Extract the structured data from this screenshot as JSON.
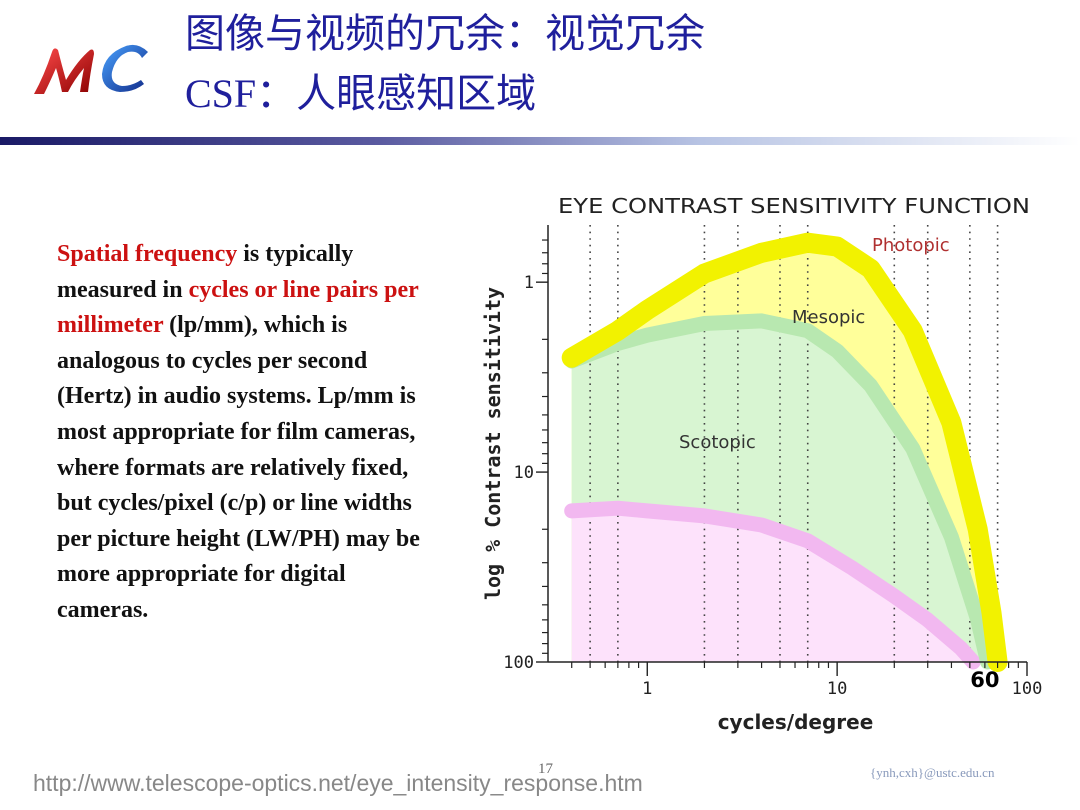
{
  "header": {
    "logo_text": "MC",
    "title_line1": "图像与视频的冗余：视觉冗余",
    "title_line2_latin": "CSF",
    "title_line2_cjk": "：人眼感知区域"
  },
  "body": {
    "seg1": "Spatial frequency",
    "seg2": " is typically measured in ",
    "seg3": "cycles or line pairs per millimeter",
    "seg4": " (lp/mm), which is analogous to cycles per second  (Hertz) in audio systems. Lp/mm is most appropriate for film cameras, where formats are relatively fixed, but cycles/pixel (c/p) or line widths per picture height (LW/PH) may be more appropriate for digital cameras."
  },
  "footer": {
    "url": "http://www.telescope-optics.net/eye_intensity_response.htm",
    "page_number": "17",
    "email": "{ynh,cxh}@ustc.edu.cn"
  },
  "colors": {
    "title": "#1f1f9c",
    "highlight": "#cc1111",
    "photopic": "#f2f200",
    "photopic_fill": "#ffff9a",
    "mesopic": "#b8e8b0",
    "mesopic_fill": "#d8f5d2",
    "scotopic": "#f2b8f0",
    "scotopic_fill": "#fde2fb"
  },
  "chart_data": {
    "type": "area",
    "title": "EYE CONTRAST SENSITIVITY FUNCTION",
    "xlabel": "cycles/degree",
    "ylabel": "log % Contrast sensitivity",
    "x_scale": "log",
    "y_scale": "log",
    "y_inverted": true,
    "xlim": [
      0.3,
      100
    ],
    "ylim": [
      0.5,
      100
    ],
    "x_ticks": [
      "1",
      "10",
      "100"
    ],
    "x_annotation": "60",
    "y_ticks": [
      "1",
      "10",
      "100"
    ],
    "grid": "dotted vertical",
    "series": [
      {
        "name": "Photopic",
        "x": [
          0.4,
          0.7,
          1.0,
          2.0,
          4.0,
          7.0,
          10.0,
          15.0,
          25.0,
          40.0,
          55.0,
          65.0,
          70.0
        ],
        "y": [
          2.5,
          1.8,
          1.4,
          0.9,
          0.7,
          0.62,
          0.65,
          0.85,
          1.8,
          5.5,
          20.0,
          55.0,
          100.0
        ]
      },
      {
        "name": "Mesopic",
        "x": [
          0.4,
          0.7,
          1.0,
          2.0,
          4.0,
          7.0,
          10.0,
          15.0,
          25.0,
          40.0,
          55.0,
          62.0
        ],
        "y": [
          2.6,
          2.1,
          1.9,
          1.65,
          1.6,
          1.8,
          2.3,
          3.5,
          7.5,
          22.0,
          60.0,
          100.0
        ]
      },
      {
        "name": "Scotopic",
        "x": [
          0.4,
          0.7,
          1.0,
          2.0,
          4.0,
          7.0,
          12.0,
          20.0,
          30.0,
          45.0,
          52.0
        ],
        "y": [
          16.0,
          15.5,
          16.0,
          17.0,
          19.0,
          23.0,
          32.0,
          45.0,
          60.0,
          85.0,
          100.0
        ]
      }
    ]
  }
}
